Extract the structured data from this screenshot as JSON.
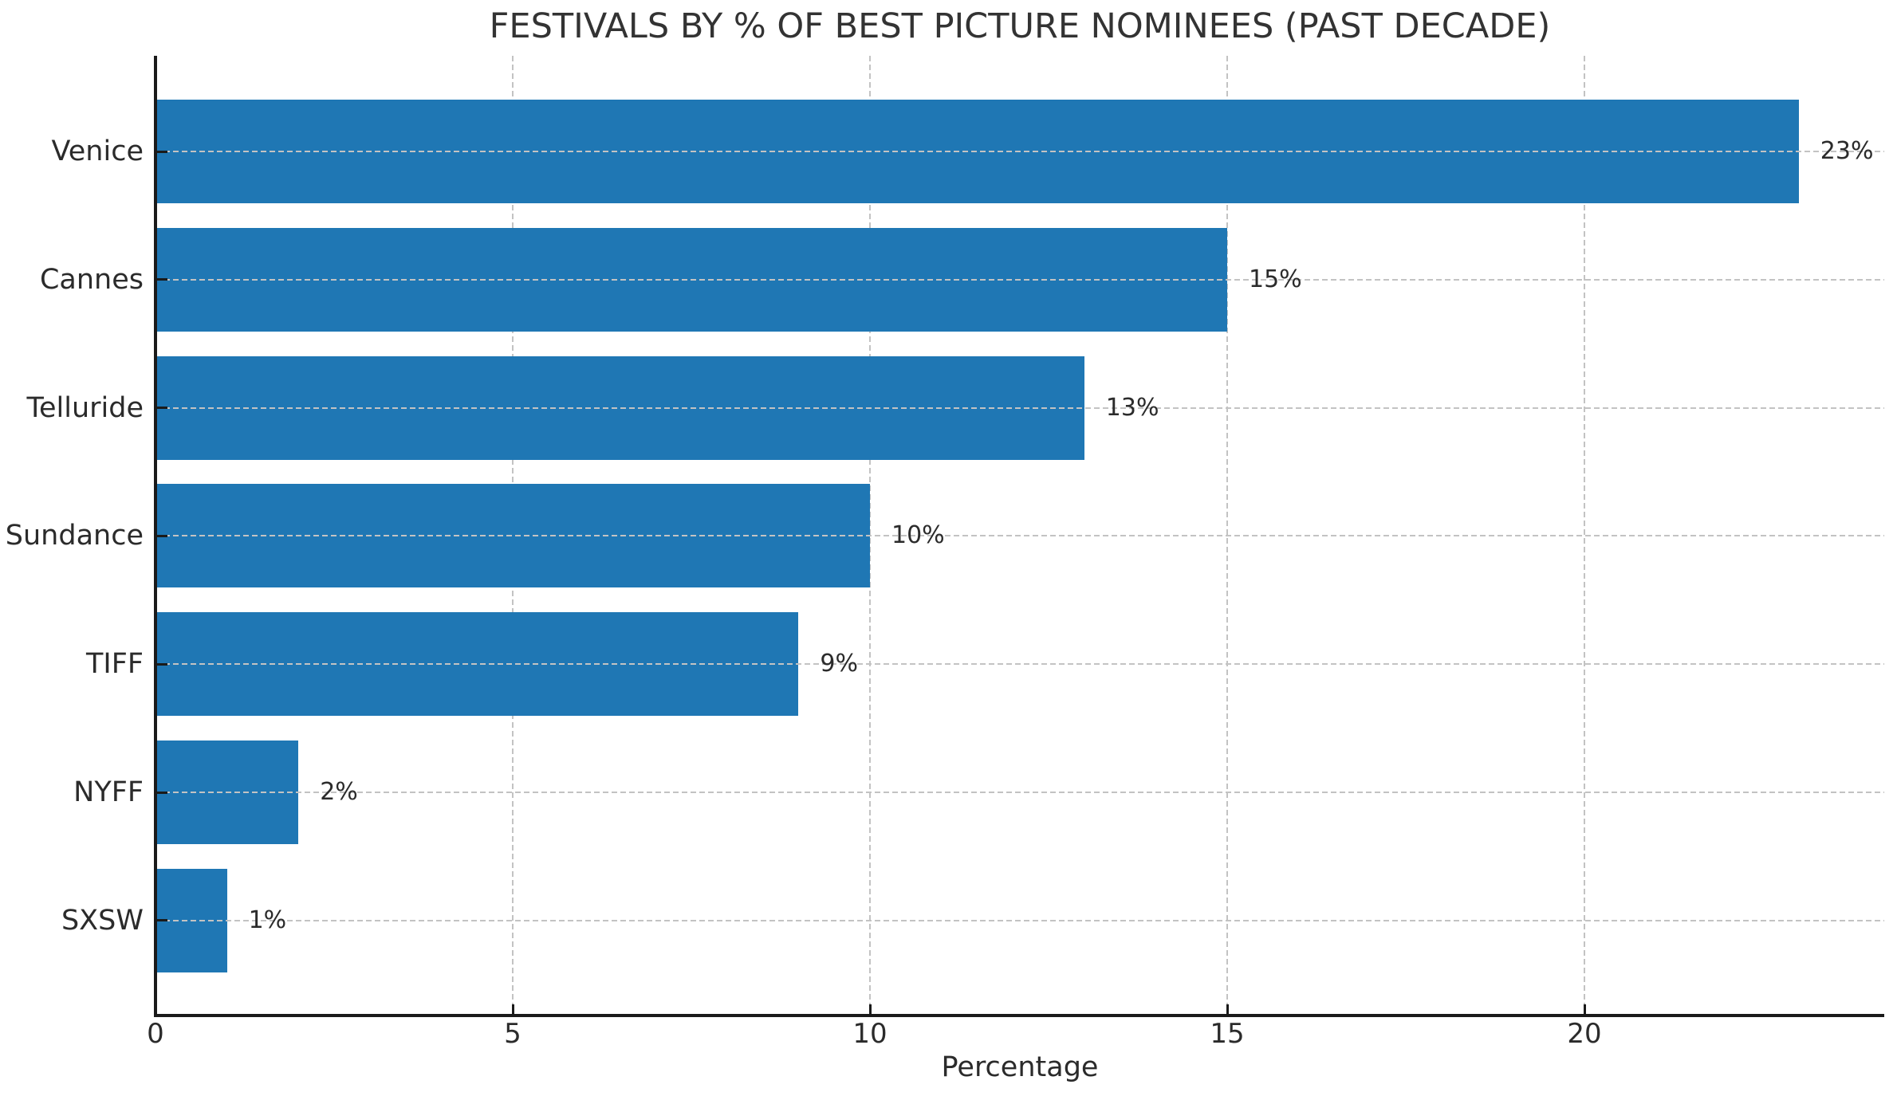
{
  "page": {
    "background": "#ffffff"
  },
  "chart_data": {
    "type": "bar",
    "orientation": "horizontal",
    "title": "FESTIVALS BY % OF BEST PICTURE NOMINEES (PAST DECADE)",
    "xlabel": "Percentage",
    "ylabel": "",
    "categories": [
      "Venice",
      "Cannes",
      "Telluride",
      "Sundance",
      "TIFF",
      "NYFF",
      "SXSW"
    ],
    "values": [
      23,
      15,
      13,
      10,
      9,
      2,
      1
    ],
    "value_labels": [
      "23%",
      "15%",
      "13%",
      "10%",
      "9%",
      "2%",
      "1%"
    ],
    "x_ticks": [
      0,
      5,
      10,
      15,
      20
    ],
    "x_tick_labels": [
      "0",
      "5",
      "10",
      "15",
      "20"
    ],
    "xlim": [
      0,
      24.2
    ],
    "grid": {
      "style": "dashed",
      "vertical_lines_at": [
        5,
        10,
        15,
        20
      ],
      "horizontal_lines": "at each category center"
    },
    "legend": "none",
    "colors": {
      "bar": "#1f77b4",
      "grid": "#c3c3c3",
      "axis": "#1a1a1a",
      "text": "#2b2b2b",
      "title": "#333333"
    }
  }
}
